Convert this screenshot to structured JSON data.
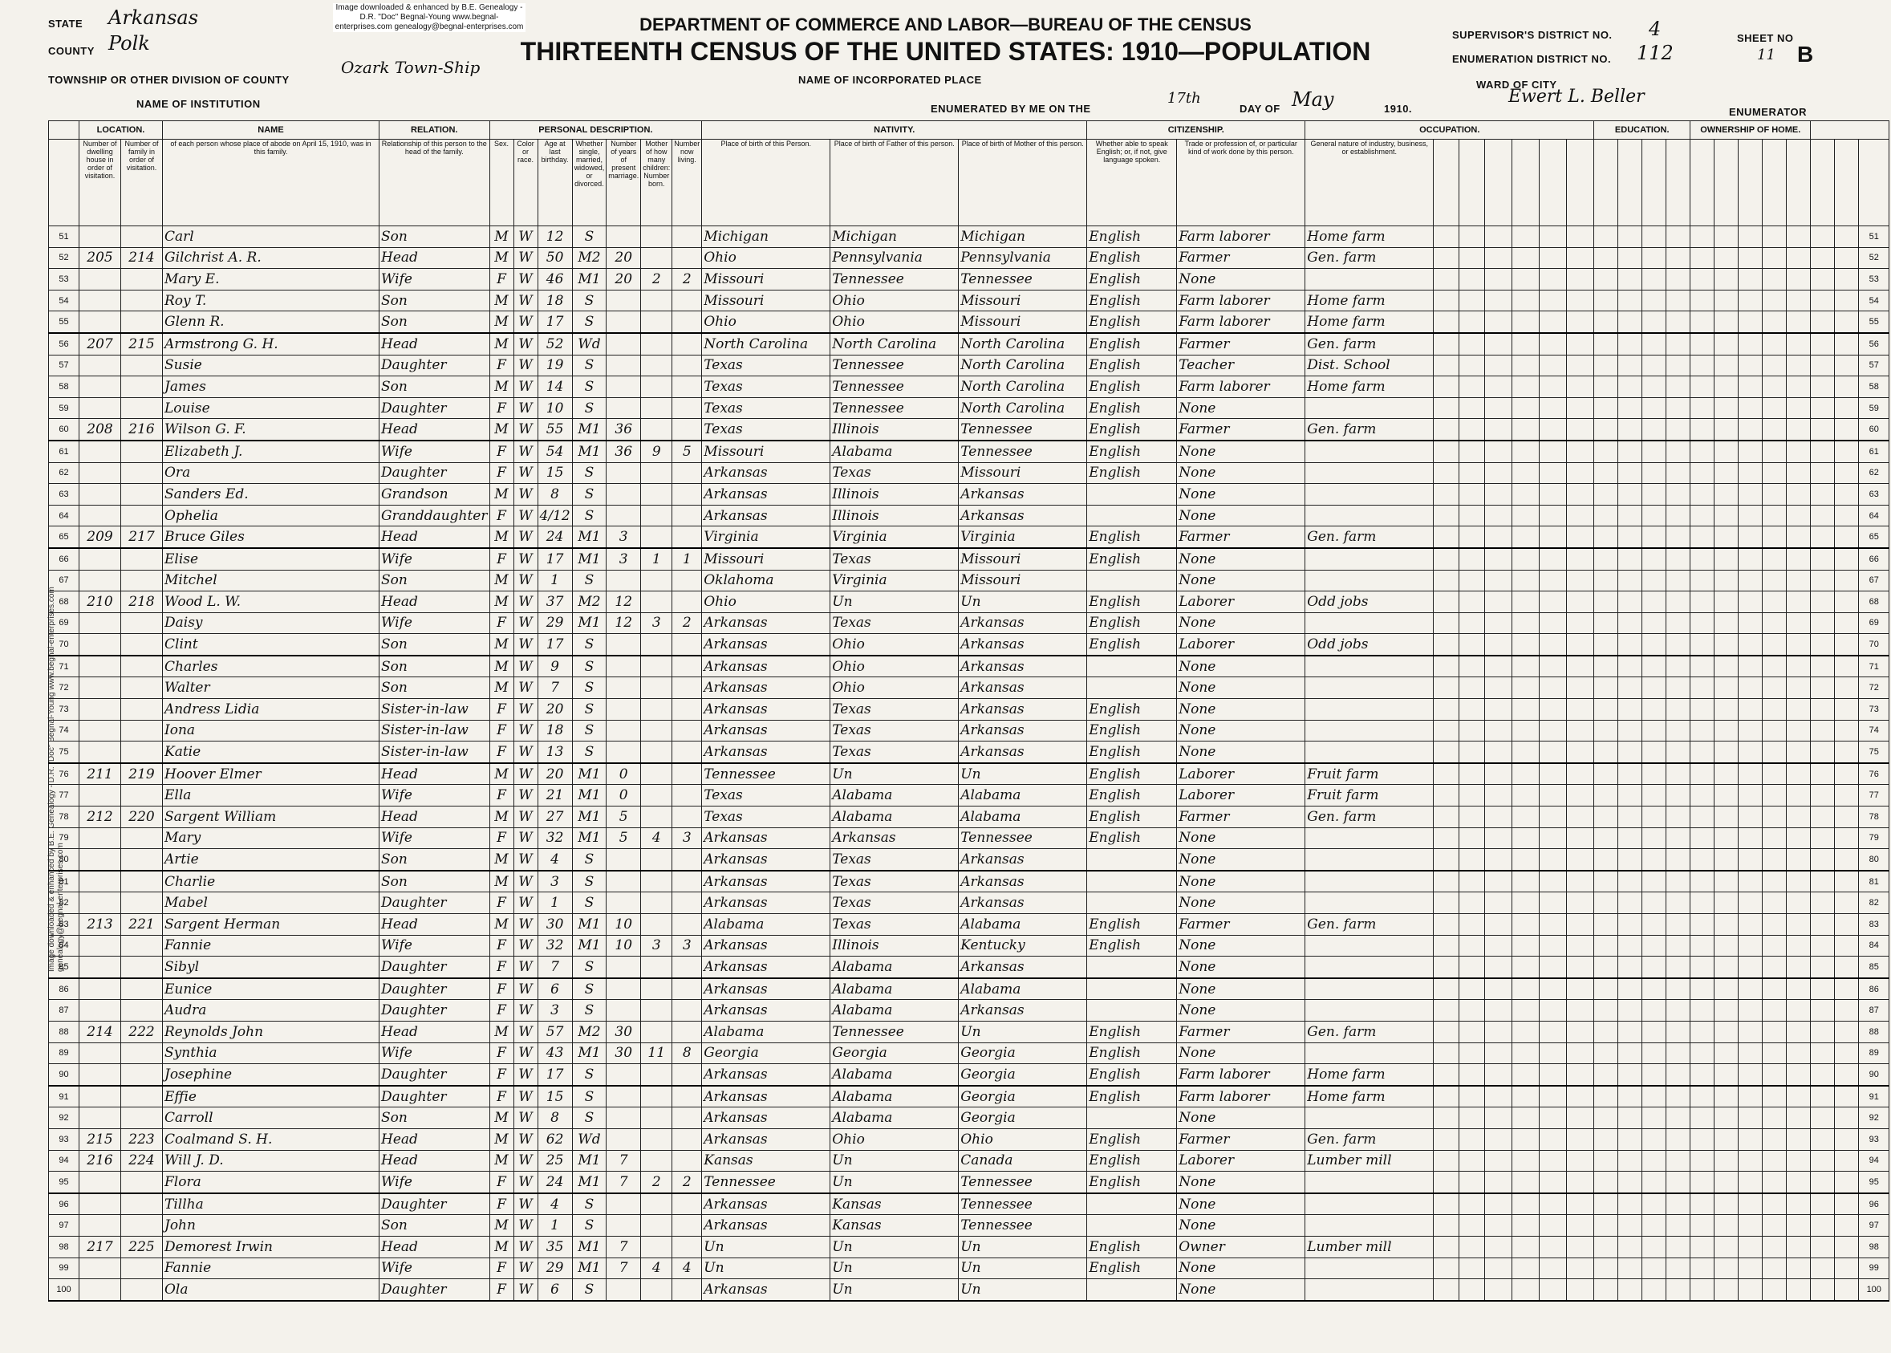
{
  "header": {
    "state_label": "STATE",
    "state": "Arkansas",
    "county_label": "COUNTY",
    "county": "Polk",
    "township_label": "TOWNSHIP OR OTHER DIVISION OF COUNTY",
    "township": "Ozark Town-Ship",
    "institution_label": "NAME OF INSTITUTION",
    "incorporated_label": "NAME OF INCORPORATED PLACE",
    "department": "DEPARTMENT OF COMMERCE AND LABOR—BUREAU OF THE CENSUS",
    "title": "THIRTEENTH CENSUS OF THE UNITED STATES: 1910—POPULATION",
    "supervisor_label": "SUPERVISOR'S DISTRICT NO.",
    "supervisor": "4",
    "enumeration_label": "ENUMERATION DISTRICT NO.",
    "enumeration": "112",
    "sheet_label": "SHEET NO",
    "sheet": "11",
    "sheet_side": "B",
    "ward_label": "WARD OF CITY",
    "enumerated_label": "ENUMERATED BY ME ON THE",
    "day": "17th",
    "day_label": "DAY OF",
    "month": "May",
    "year": "1910.",
    "enumerator": "Ewert L. Beller",
    "enumerator_label": "ENUMERATOR",
    "watermark": "Image downloaded & enhanced by B.E. Genealogy - D.R. \"Doc\" Begnal-Young www.begnal-enterprises.com genealogy@begnal-enterprises.com"
  },
  "groups": [
    "LOCATION.",
    "NAME",
    "RELATION.",
    "PERSONAL DESCRIPTION.",
    "NATIVITY.",
    "CITIZENSHIP.",
    "OCCUPATION.",
    "EDUCATION.",
    "OWNERSHIP OF HOME."
  ],
  "columns": [
    "Number of dwelling house in order of visitation.",
    "Number of family in order of visitation.",
    "of each person whose place of abode on April 15, 1910, was in this family.",
    "Relationship of this person to the head of the family.",
    "Sex.",
    "Color or race.",
    "Age at last birthday.",
    "Whether single, married, widowed, or divorced.",
    "Number of years of present marriage.",
    "Mother of how many children: Number born.",
    "Number now living.",
    "Place of birth of this Person.",
    "Place of birth of Father of this person.",
    "Place of birth of Mother of this person.",
    "Whether able to speak English; or, if not, give language spoken.",
    "Trade or profession of, or particular kind of work done by this person.",
    "General nature of industry, business, or establishment."
  ],
  "rows": [
    [
      "51",
      null,
      null,
      "Carl",
      "Son",
      "M",
      "W",
      "12",
      "S",
      null,
      null,
      null,
      "Michigan",
      "Michigan",
      "Michigan",
      "English",
      "Farm laborer",
      "Home farm"
    ],
    [
      "52",
      "205",
      "214",
      "Gilchrist A. R.",
      "Head",
      "M",
      "W",
      "50",
      "M2",
      "20",
      null,
      null,
      "Ohio",
      "Pennsylvania",
      "Pennsylvania",
      "English",
      "Farmer",
      "Gen. farm"
    ],
    [
      "53",
      null,
      null,
      "Mary E.",
      "Wife",
      "F",
      "W",
      "46",
      "M1",
      "20",
      "2",
      "2",
      "Missouri",
      "Tennessee",
      "Tennessee",
      "English",
      "None",
      null
    ],
    [
      "54",
      null,
      null,
      "Roy T.",
      "Son",
      "M",
      "W",
      "18",
      "S",
      null,
      null,
      null,
      "Missouri",
      "Ohio",
      "Missouri",
      "English",
      "Farm laborer",
      "Home farm"
    ],
    [
      "55",
      null,
      null,
      "Glenn R.",
      "Son",
      "M",
      "W",
      "17",
      "S",
      null,
      null,
      null,
      "Ohio",
      "Ohio",
      "Missouri",
      "English",
      "Farm laborer",
      "Home farm"
    ],
    [
      "56",
      "207",
      "215",
      "Armstrong G. H.",
      "Head",
      "M",
      "W",
      "52",
      "Wd",
      null,
      null,
      null,
      "North Carolina",
      "North Carolina",
      "North Carolina",
      "English",
      "Farmer",
      "Gen. farm"
    ],
    [
      "57",
      null,
      null,
      "Susie",
      "Daughter",
      "F",
      "W",
      "19",
      "S",
      null,
      null,
      null,
      "Texas",
      "Tennessee",
      "North Carolina",
      "English",
      "Teacher",
      "Dist. School"
    ],
    [
      "58",
      null,
      null,
      "James",
      "Son",
      "M",
      "W",
      "14",
      "S",
      null,
      null,
      null,
      "Texas",
      "Tennessee",
      "North Carolina",
      "English",
      "Farm laborer",
      "Home farm"
    ],
    [
      "59",
      null,
      null,
      "Louise",
      "Daughter",
      "F",
      "W",
      "10",
      "S",
      null,
      null,
      null,
      "Texas",
      "Tennessee",
      "North Carolina",
      "English",
      "None",
      null
    ],
    [
      "60",
      "208",
      "216",
      "Wilson G. F.",
      "Head",
      "M",
      "W",
      "55",
      "M1",
      "36",
      null,
      null,
      "Texas",
      "Illinois",
      "Tennessee",
      "English",
      "Farmer",
      "Gen. farm"
    ],
    [
      "61",
      null,
      null,
      "Elizabeth J.",
      "Wife",
      "F",
      "W",
      "54",
      "M1",
      "36",
      "9",
      "5",
      "Missouri",
      "Alabama",
      "Tennessee",
      "English",
      "None",
      null
    ],
    [
      "62",
      null,
      null,
      "Ora",
      "Daughter",
      "F",
      "W",
      "15",
      "S",
      null,
      null,
      null,
      "Arkansas",
      "Texas",
      "Missouri",
      "English",
      "None",
      null
    ],
    [
      "63",
      null,
      null,
      "Sanders Ed.",
      "Grandson",
      "M",
      "W",
      "8",
      "S",
      null,
      null,
      null,
      "Arkansas",
      "Illinois",
      "Arkansas",
      null,
      "None",
      null
    ],
    [
      "64",
      null,
      null,
      "Ophelia",
      "Granddaughter",
      "F",
      "W",
      "4/12",
      "S",
      null,
      null,
      null,
      "Arkansas",
      "Illinois",
      "Arkansas",
      null,
      "None",
      null
    ],
    [
      "65",
      "209",
      "217",
      "Bruce Giles",
      "Head",
      "M",
      "W",
      "24",
      "M1",
      "3",
      null,
      null,
      "Virginia",
      "Virginia",
      "Virginia",
      "English",
      "Farmer",
      "Gen. farm"
    ],
    [
      "66",
      null,
      null,
      "Elise",
      "Wife",
      "F",
      "W",
      "17",
      "M1",
      "3",
      "1",
      "1",
      "Missouri",
      "Texas",
      "Missouri",
      "English",
      "None",
      null
    ],
    [
      "67",
      null,
      null,
      "Mitchel",
      "Son",
      "M",
      "W",
      "1",
      "S",
      null,
      null,
      null,
      "Oklahoma",
      "Virginia",
      "Missouri",
      null,
      "None",
      null
    ],
    [
      "68",
      "210",
      "218",
      "Wood L. W.",
      "Head",
      "M",
      "W",
      "37",
      "M2",
      "12",
      null,
      null,
      "Ohio",
      "Un",
      "Un",
      "English",
      "Laborer",
      "Odd jobs"
    ],
    [
      "69",
      null,
      null,
      "Daisy",
      "Wife",
      "F",
      "W",
      "29",
      "M1",
      "12",
      "3",
      "2",
      "Arkansas",
      "Texas",
      "Arkansas",
      "English",
      "None",
      null
    ],
    [
      "70",
      null,
      null,
      "Clint",
      "Son",
      "M",
      "W",
      "17",
      "S",
      null,
      null,
      null,
      "Arkansas",
      "Ohio",
      "Arkansas",
      "English",
      "Laborer",
      "Odd jobs"
    ],
    [
      "71",
      null,
      null,
      "Charles",
      "Son",
      "M",
      "W",
      "9",
      "S",
      null,
      null,
      null,
      "Arkansas",
      "Ohio",
      "Arkansas",
      null,
      "None",
      null
    ],
    [
      "72",
      null,
      null,
      "Walter",
      "Son",
      "M",
      "W",
      "7",
      "S",
      null,
      null,
      null,
      "Arkansas",
      "Ohio",
      "Arkansas",
      null,
      "None",
      null
    ],
    [
      "73",
      null,
      null,
      "Andress Lidia",
      "Sister-in-law",
      "F",
      "W",
      "20",
      "S",
      null,
      null,
      null,
      "Arkansas",
      "Texas",
      "Arkansas",
      "English",
      "None",
      null
    ],
    [
      "74",
      null,
      null,
      "Iona",
      "Sister-in-law",
      "F",
      "W",
      "18",
      "S",
      null,
      null,
      null,
      "Arkansas",
      "Texas",
      "Arkansas",
      "English",
      "None",
      null
    ],
    [
      "75",
      null,
      null,
      "Katie",
      "Sister-in-law",
      "F",
      "W",
      "13",
      "S",
      null,
      null,
      null,
      "Arkansas",
      "Texas",
      "Arkansas",
      "English",
      "None",
      null
    ],
    [
      "76",
      "211",
      "219",
      "Hoover Elmer",
      "Head",
      "M",
      "W",
      "20",
      "M1",
      "0",
      null,
      null,
      "Tennessee",
      "Un",
      "Un",
      "English",
      "Laborer",
      "Fruit farm"
    ],
    [
      "77",
      null,
      null,
      "Ella",
      "Wife",
      "F",
      "W",
      "21",
      "M1",
      "0",
      null,
      null,
      "Texas",
      "Alabama",
      "Alabama",
      "English",
      "Laborer",
      "Fruit farm"
    ],
    [
      "78",
      "212",
      "220",
      "Sargent William",
      "Head",
      "M",
      "W",
      "27",
      "M1",
      "5",
      null,
      null,
      "Texas",
      "Alabama",
      "Alabama",
      "English",
      "Farmer",
      "Gen. farm"
    ],
    [
      "79",
      null,
      null,
      "Mary",
      "Wife",
      "F",
      "W",
      "32",
      "M1",
      "5",
      "4",
      "3",
      "Arkansas",
      "Arkansas",
      "Tennessee",
      "English",
      "None",
      null
    ],
    [
      "80",
      null,
      null,
      "Artie",
      "Son",
      "M",
      "W",
      "4",
      "S",
      null,
      null,
      null,
      "Arkansas",
      "Texas",
      "Arkansas",
      null,
      "None",
      null
    ],
    [
      "81",
      null,
      null,
      "Charlie",
      "Son",
      "M",
      "W",
      "3",
      "S",
      null,
      null,
      null,
      "Arkansas",
      "Texas",
      "Arkansas",
      null,
      "None",
      null
    ],
    [
      "82",
      null,
      null,
      "Mabel",
      "Daughter",
      "F",
      "W",
      "1",
      "S",
      null,
      null,
      null,
      "Arkansas",
      "Texas",
      "Arkansas",
      null,
      "None",
      null
    ],
    [
      "83",
      "213",
      "221",
      "Sargent Herman",
      "Head",
      "M",
      "W",
      "30",
      "M1",
      "10",
      null,
      null,
      "Alabama",
      "Texas",
      "Alabama",
      "English",
      "Farmer",
      "Gen. farm"
    ],
    [
      "84",
      null,
      null,
      "Fannie",
      "Wife",
      "F",
      "W",
      "32",
      "M1",
      "10",
      "3",
      "3",
      "Arkansas",
      "Illinois",
      "Kentucky",
      "English",
      "None",
      null
    ],
    [
      "85",
      null,
      null,
      "Sibyl",
      "Daughter",
      "F",
      "W",
      "7",
      "S",
      null,
      null,
      null,
      "Arkansas",
      "Alabama",
      "Arkansas",
      null,
      "None",
      null
    ],
    [
      "86",
      null,
      null,
      "Eunice",
      "Daughter",
      "F",
      "W",
      "6",
      "S",
      null,
      null,
      null,
      "Arkansas",
      "Alabama",
      "Alabama",
      null,
      "None",
      null
    ],
    [
      "87",
      null,
      null,
      "Audra",
      "Daughter",
      "F",
      "W",
      "3",
      "S",
      null,
      null,
      null,
      "Arkansas",
      "Alabama",
      "Arkansas",
      null,
      "None",
      null
    ],
    [
      "88",
      "214",
      "222",
      "Reynolds John",
      "Head",
      "M",
      "W",
      "57",
      "M2",
      "30",
      null,
      null,
      "Alabama",
      "Tennessee",
      "Un",
      "English",
      "Farmer",
      "Gen. farm"
    ],
    [
      "89",
      null,
      null,
      "Synthia",
      "Wife",
      "F",
      "W",
      "43",
      "M1",
      "30",
      "11",
      "8",
      "Georgia",
      "Georgia",
      "Georgia",
      "English",
      "None",
      null
    ],
    [
      "90",
      null,
      null,
      "Josephine",
      "Daughter",
      "F",
      "W",
      "17",
      "S",
      null,
      null,
      null,
      "Arkansas",
      "Alabama",
      "Georgia",
      "English",
      "Farm laborer",
      "Home farm"
    ],
    [
      "91",
      null,
      null,
      "Effie",
      "Daughter",
      "F",
      "W",
      "15",
      "S",
      null,
      null,
      null,
      "Arkansas",
      "Alabama",
      "Georgia",
      "English",
      "Farm laborer",
      "Home farm"
    ],
    [
      "92",
      null,
      null,
      "Carroll",
      "Son",
      "M",
      "W",
      "8",
      "S",
      null,
      null,
      null,
      "Arkansas",
      "Alabama",
      "Georgia",
      null,
      "None",
      null
    ],
    [
      "93",
      "215",
      "223",
      "Coalmand S. H.",
      "Head",
      "M",
      "W",
      "62",
      "Wd",
      null,
      null,
      null,
      "Arkansas",
      "Ohio",
      "Ohio",
      "English",
      "Farmer",
      "Gen. farm"
    ],
    [
      "94",
      "216",
      "224",
      "Will J. D.",
      "Head",
      "M",
      "W",
      "25",
      "M1",
      "7",
      null,
      null,
      "Kansas",
      "Un",
      "Canada",
      "English",
      "Laborer",
      "Lumber mill"
    ],
    [
      "95",
      null,
      null,
      "Flora",
      "Wife",
      "F",
      "W",
      "24",
      "M1",
      "7",
      "2",
      "2",
      "Tennessee",
      "Un",
      "Tennessee",
      "English",
      "None",
      null
    ],
    [
      "96",
      null,
      null,
      "Tillha",
      "Daughter",
      "F",
      "W",
      "4",
      "S",
      null,
      null,
      null,
      "Arkansas",
      "Kansas",
      "Tennessee",
      null,
      "None",
      null
    ],
    [
      "97",
      null,
      null,
      "John",
      "Son",
      "M",
      "W",
      "1",
      "S",
      null,
      null,
      null,
      "Arkansas",
      "Kansas",
      "Tennessee",
      null,
      "None",
      null
    ],
    [
      "98",
      "217",
      "225",
      "Demorest Irwin",
      "Head",
      "M",
      "W",
      "35",
      "M1",
      "7",
      null,
      null,
      "Un",
      "Un",
      "Un",
      "English",
      "Owner",
      "Lumber mill"
    ],
    [
      "99",
      null,
      null,
      "Fannie",
      "Wife",
      "F",
      "W",
      "29",
      "M1",
      "7",
      "4",
      "4",
      "Un",
      "Un",
      "Un",
      "English",
      "None",
      null
    ],
    [
      "100",
      null,
      null,
      "Ola",
      "Daughter",
      "F",
      "W",
      "6",
      "S",
      null,
      null,
      null,
      "Arkansas",
      "Un",
      "Un",
      null,
      "None",
      null
    ]
  ]
}
